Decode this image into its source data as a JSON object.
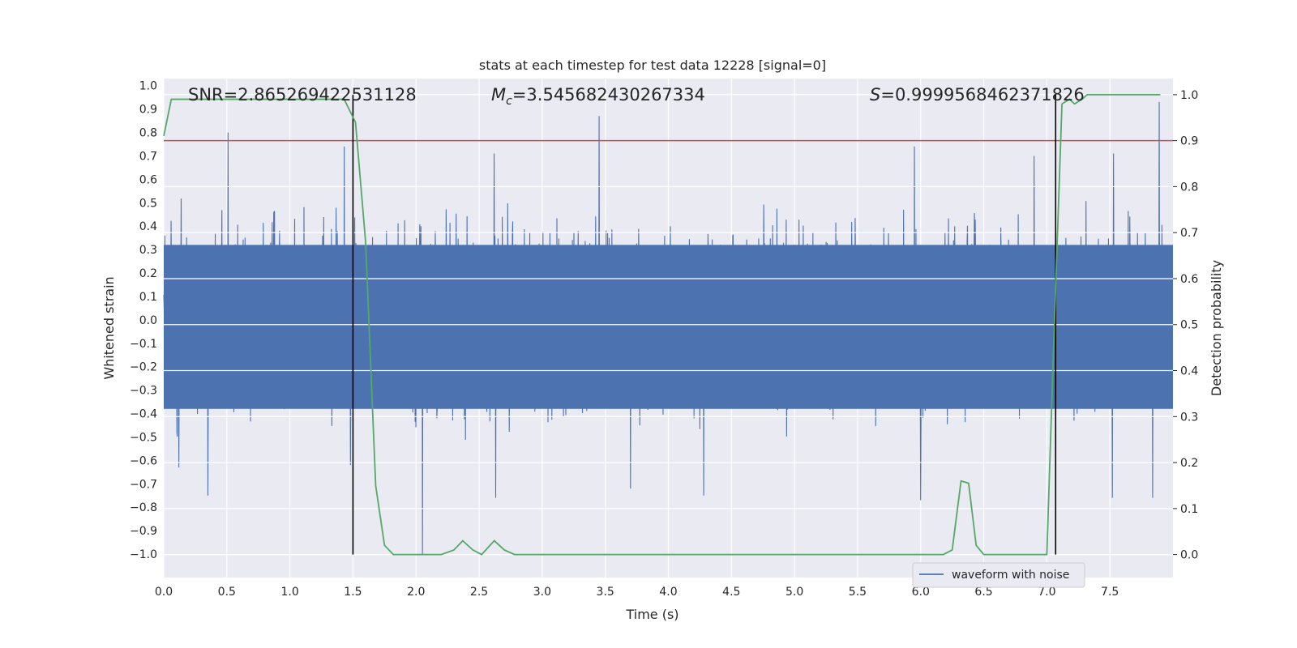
{
  "chart_data": {
    "type": "line",
    "title": "stats at each timestep for test data 12228 [signal=0]",
    "xlabel": "Time (s)",
    "ylabel": "Whitened strain",
    "y2label": "Detection probability",
    "xlim": [
      0.0,
      8.0
    ],
    "ylim": [
      -1.1,
      1.03
    ],
    "y2lim": [
      -0.05,
      1.035
    ],
    "xticks": [
      "0.0",
      "0.5",
      "1.0",
      "1.5",
      "2.0",
      "2.5",
      "3.0",
      "3.5",
      "4.0",
      "4.5",
      "5.0",
      "5.5",
      "6.0",
      "6.5",
      "7.0",
      "7.5"
    ],
    "yticks": [
      "1.0",
      "0.9",
      "0.8",
      "0.7",
      "0.6",
      "0.5",
      "0.4",
      "0.3",
      "0.2",
      "0.1",
      "0.0",
      "−0.1",
      "−0.2",
      "−0.3",
      "−0.4",
      "−0.5",
      "−0.6",
      "−0.7",
      "−0.8",
      "−0.9",
      "−1.0"
    ],
    "y2ticks": [
      "1.0",
      "0.9",
      "0.8",
      "0.7",
      "0.6",
      "0.5",
      "0.4",
      "0.3",
      "0.2",
      "0.1",
      "0.0"
    ],
    "grid": true,
    "legend_position": "lower-right",
    "annotations": {
      "snr": "SNR=2.865269422531128",
      "mc_symbol": "M",
      "mc_sub": "c",
      "mc_value": "=3.545682430267334",
      "s_symbol": "S",
      "s_value": "=0.9999568462371826"
    },
    "threshold_line": {
      "y2": 0.9,
      "color": "#c44e52"
    },
    "vertical_lines_x": [
      1.5,
      7.07
    ],
    "series": [
      {
        "name": "waveform with noise",
        "axis": "left",
        "color": "#4c72b0",
        "envelope_top_peaks": [
          [
            0.51,
            0.8
          ],
          [
            1.43,
            0.74
          ],
          [
            2.62,
            0.71
          ],
          [
            3.45,
            0.87
          ],
          [
            5.95,
            0.74
          ],
          [
            6.9,
            0.7
          ],
          [
            7.53,
            0.71
          ],
          [
            7.89,
            0.93
          ]
        ],
        "envelope_bottom_peaks": [
          [
            0.35,
            -0.75
          ],
          [
            0.12,
            -0.63
          ],
          [
            1.48,
            -0.62
          ],
          [
            2.05,
            -1.0
          ],
          [
            2.63,
            -0.76
          ],
          [
            3.7,
            -0.72
          ],
          [
            4.28,
            -0.75
          ],
          [
            6.0,
            -0.77
          ],
          [
            7.52,
            -0.76
          ],
          [
            7.84,
            -0.76
          ]
        ],
        "typical_amplitude": 0.55,
        "core_band": [
          -0.38,
          0.32
        ]
      },
      {
        "name": "",
        "axis": "right",
        "color": "#55a868",
        "x": [
          0.0,
          0.06,
          0.12,
          1.3,
          1.43,
          1.52,
          1.6,
          1.68,
          1.75,
          1.82,
          1.9,
          2.0,
          2.2,
          2.3,
          2.37,
          2.45,
          2.52,
          2.62,
          2.7,
          2.78,
          3.0,
          3.5,
          4.0,
          4.5,
          5.0,
          5.5,
          6.0,
          6.18,
          6.25,
          6.32,
          6.38,
          6.44,
          6.5,
          6.7,
          7.0,
          7.05,
          7.12,
          7.18,
          7.22,
          7.28,
          7.32,
          7.9
        ],
        "y": [
          0.91,
          0.99,
          0.99,
          0.99,
          0.99,
          0.94,
          0.68,
          0.15,
          0.02,
          0.0,
          0.0,
          0.0,
          0.0,
          0.01,
          0.03,
          0.01,
          0.0,
          0.03,
          0.01,
          0.0,
          0.0,
          0.0,
          0.0,
          0.0,
          0.0,
          0.0,
          0.0,
          0.0,
          0.01,
          0.16,
          0.155,
          0.02,
          0.0,
          0.0,
          0.0,
          0.42,
          0.98,
          0.99,
          0.98,
          0.99,
          1.0,
          1.0
        ]
      }
    ]
  }
}
